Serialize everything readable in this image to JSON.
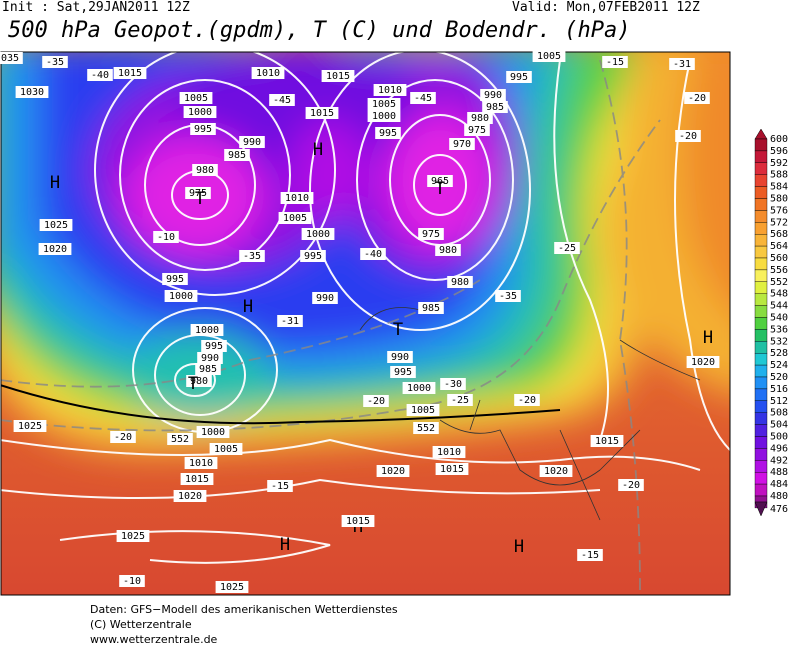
{
  "header": {
    "init": "Init : Sat,29JAN2011 12Z",
    "valid": "Valid: Mon,07FEB2011 12Z",
    "title": "500 hPa Geopot.(gpdm), T (C) und Bodendr. (hPa)"
  },
  "legend": {
    "values": [
      600,
      596,
      592,
      588,
      584,
      580,
      576,
      572,
      568,
      564,
      560,
      556,
      552,
      548,
      544,
      540,
      536,
      532,
      528,
      524,
      520,
      516,
      512,
      508,
      504,
      500,
      496,
      492,
      488,
      484,
      480,
      476
    ],
    "colors": [
      "#a8102c",
      "#c41838",
      "#dc2c3c",
      "#e84430",
      "#ec5c24",
      "#f07424",
      "#f48c2c",
      "#f8a030",
      "#f8b438",
      "#f8c840",
      "#f8dc40",
      "#f8f05c",
      "#e0f040",
      "#b8e840",
      "#88dc40",
      "#50d040",
      "#24c064",
      "#20c0a4",
      "#20c8d4",
      "#20b0ec",
      "#2090f4",
      "#2070f4",
      "#2450f0",
      "#3434e4",
      "#5020e0",
      "#7010e0",
      "#9010e0",
      "#b010e4",
      "#d010e4",
      "#c010c0",
      "#901090",
      "#501050"
    ]
  },
  "map": {
    "labels": [
      "1015",
      "1010",
      "1015",
      "1005",
      "1000",
      "995",
      "990",
      "985",
      "980",
      "975",
      "T",
      "H",
      "1025",
      "1020",
      "1030",
      "-40",
      "-35",
      "-45",
      "1015",
      "H",
      "1010",
      "1005",
      "1000",
      "995",
      "-40",
      "990",
      "1010",
      "1005",
      "1000",
      "995",
      "-45",
      "990",
      "985",
      "980",
      "975",
      "970",
      "965",
      "T",
      "975",
      "980",
      "980",
      "985",
      "-35",
      "-25",
      "995",
      "1005",
      "-15",
      "-31",
      "-20",
      "-20",
      "H",
      "-31",
      "T",
      "990",
      "995",
      "1000",
      "-30",
      "1005",
      "-25",
      "-20",
      "-20",
      "552",
      "552",
      "1000",
      "995",
      "990",
      "985",
      "980",
      "T",
      "1000",
      "1005",
      "1010",
      "1015",
      "1020",
      "-20",
      "1025",
      "1025",
      "1025",
      "-10",
      "H",
      "H",
      "1015",
      "-15",
      "1010",
      "1015",
      "1020",
      "1020",
      "1015",
      "-20",
      "H",
      "-15",
      "H",
      "1020",
      "-35",
      "1000",
      "995",
      "-10",
      "035"
    ]
  },
  "footer": {
    "line1": "Daten: GFS−Modell des amerikanischen Wetterdienstes",
    "line2": "(C) Wetterzentrale",
    "line3": "www.wetterzentrale.de"
  }
}
